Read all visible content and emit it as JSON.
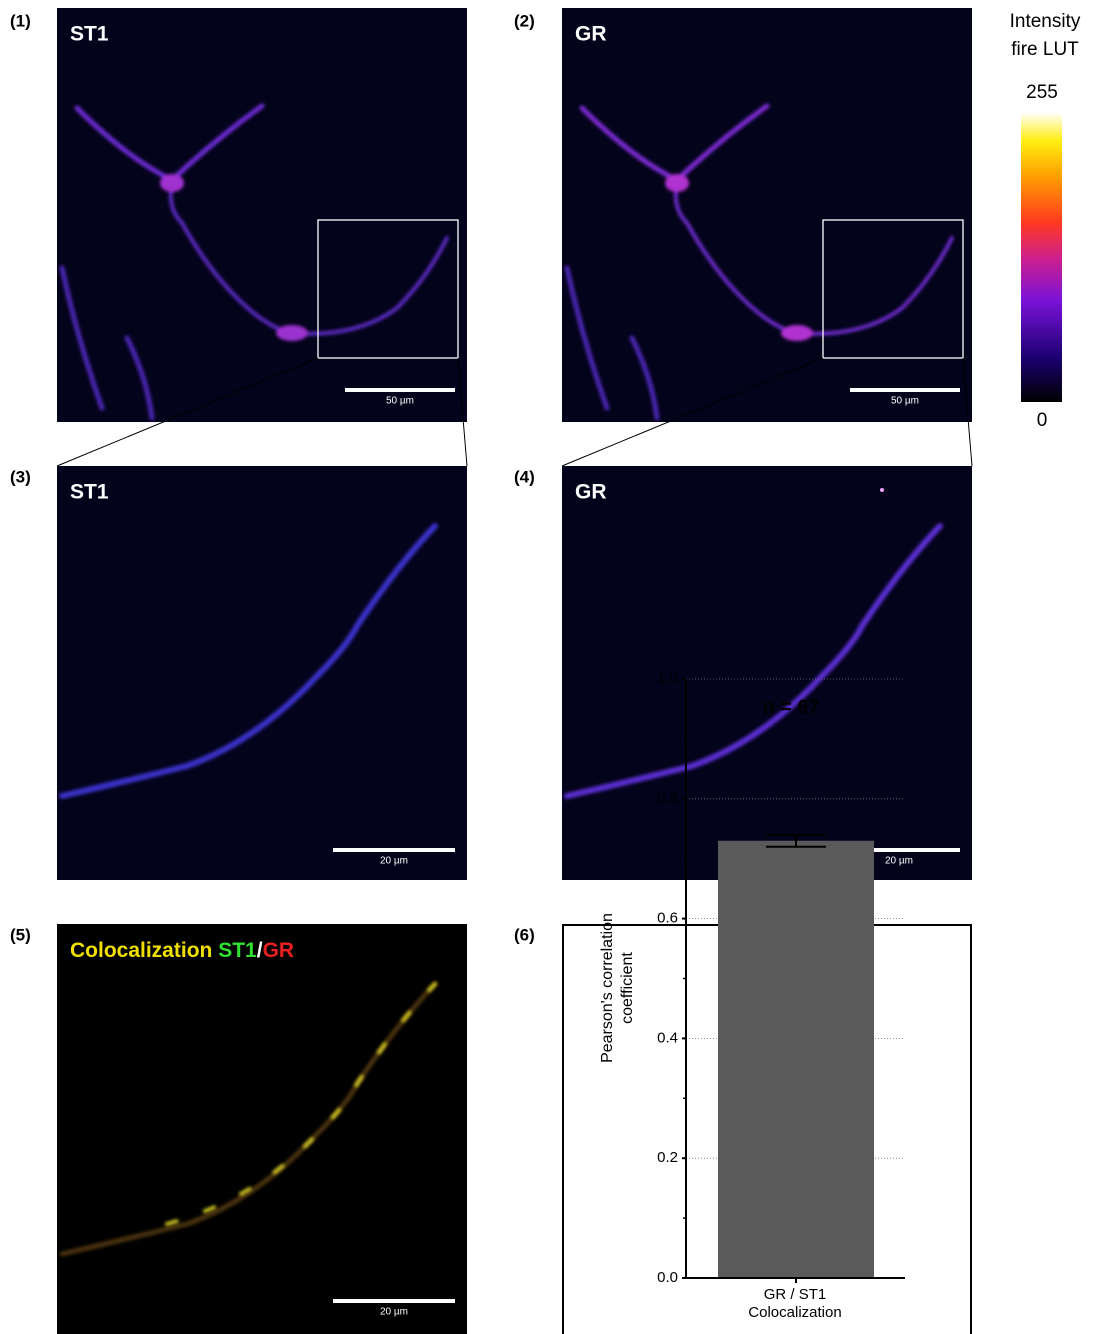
{
  "panels": [
    {
      "label": "(1)",
      "title": "ST1",
      "scale_bar": "50 µm"
    },
    {
      "label": "(2)",
      "title": "GR",
      "scale_bar": "50 µm"
    },
    {
      "label": "(3)",
      "title": "ST1",
      "scale_bar": "20 µm"
    },
    {
      "label": "(4)",
      "title": "GR",
      "scale_bar": "20 µm"
    },
    {
      "label": "(5)",
      "title_parts": [
        "Colocalization",
        "ST1",
        "/",
        "GR"
      ],
      "scale_bar": "20 µm"
    },
    {
      "label": "(6)"
    }
  ],
  "colorbar": {
    "title": [
      "Intensity",
      "fire LUT"
    ],
    "max": 255,
    "min": 0
  },
  "chart_data": {
    "type": "bar",
    "categories": [
      "GR / ST1 Colocalization"
    ],
    "values": [
      0.73
    ],
    "errors": [
      0.01
    ],
    "color": "#5a5a5a",
    "ylabel": "Pearson's correlation coefficient",
    "annotation": "n = 67",
    "ylim": [
      0,
      1
    ],
    "yticks": [
      {
        "value": 0,
        "label": "0.0"
      },
      {
        "value": 0.2,
        "label": "0.2"
      },
      {
        "value": 0.4,
        "label": "0.4"
      },
      {
        "value": 0.6,
        "label": "0.6"
      },
      {
        "value": 0.8,
        "label": "0.8"
      },
      {
        "value": 1,
        "label": "1.0"
      }
    ],
    "grid": true
  }
}
